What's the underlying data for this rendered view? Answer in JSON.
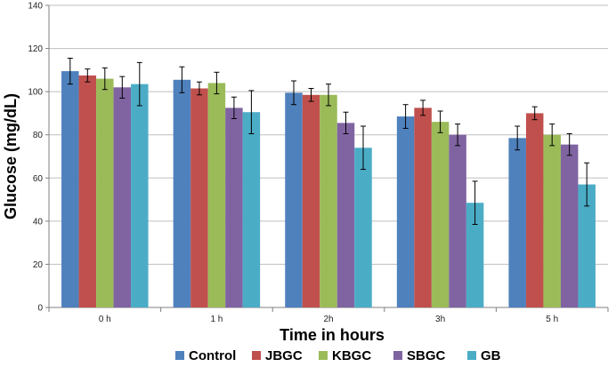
{
  "chart_data": {
    "type": "bar",
    "title": "",
    "xlabel": "Time in hours",
    "ylabel": "Glucose (mg/dL)",
    "ylim": [
      0,
      140
    ],
    "yticks": [
      0,
      20,
      40,
      60,
      80,
      100,
      120,
      140
    ],
    "grid": "horizontal",
    "legend_position": "bottom",
    "categories": [
      "0 h",
      "1 h",
      "2h",
      "3h",
      "5 h"
    ],
    "series": [
      {
        "name": "Control",
        "color": "#4F81BD",
        "values": [
          109.5,
          105.5,
          99.5,
          88.5,
          78.5
        ],
        "errors": [
          6,
          6,
          5.5,
          5.5,
          5.5
        ]
      },
      {
        "name": "JBGC",
        "color": "#C0504D",
        "values": [
          107.5,
          101.5,
          98.5,
          92.5,
          90
        ],
        "errors": [
          3,
          3,
          3,
          3.5,
          3
        ]
      },
      {
        "name": "KBGC",
        "color": "#9BBB59",
        "values": [
          106,
          104,
          98.5,
          86,
          80
        ],
        "errors": [
          5,
          5,
          5,
          5,
          5
        ]
      },
      {
        "name": "SBGC",
        "color": "#8064A2",
        "values": [
          102,
          92.5,
          85.5,
          80,
          75.5
        ],
        "errors": [
          5,
          5,
          5,
          5,
          5
        ]
      },
      {
        "name": "GB",
        "color": "#4BACC6",
        "values": [
          103.5,
          90.5,
          74,
          48.5,
          57
        ],
        "errors": [
          10,
          10,
          10,
          10,
          10
        ]
      }
    ]
  }
}
